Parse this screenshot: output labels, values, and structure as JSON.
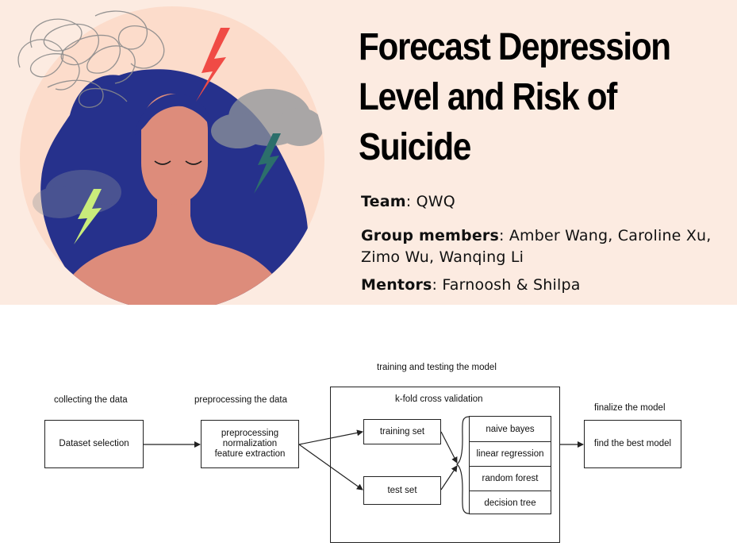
{
  "header": {
    "title_lines": [
      "Forecast Depression",
      "Level and Risk of",
      "Suicide"
    ],
    "team_label": "Team",
    "team_value": ": QWQ",
    "members_label": "Group members",
    "members_value": ": Amber Wang, Caroline Xu, Zimo Wu, Wanqing Li",
    "mentors_label": "Mentors",
    "mentors_value": ": Farnoosh & Shilpa"
  },
  "illustration": {
    "icons": [
      "scribble-thought",
      "lightning-red",
      "lightning-teal",
      "lightning-green",
      "storm-cloud",
      "woman-eyes-closed"
    ],
    "colors": {
      "banner_bg": "#fcebe1",
      "circle": "#fcdccb",
      "hair": "#26318c",
      "skin": "#dd8c7b",
      "bolt_red": "#f04b45",
      "bolt_teal": "#2c6f6b",
      "bolt_green": "#c9ec7b",
      "cloud": "#8e949a"
    }
  },
  "flow": {
    "stages": {
      "collect": "collecting the data",
      "preprocess": "preprocessing the data",
      "train": "training and testing the model",
      "finalize": "finalize the model"
    },
    "kfold": "k-fold cross validation",
    "dataset_box": "Dataset selection",
    "preprocess_box": [
      "preprocessing",
      "normalization",
      "feature extraction"
    ],
    "training_set": "training set",
    "test_set": "test set",
    "models": [
      "naive bayes",
      "linear regression",
      "random forest",
      "decision tree"
    ],
    "final_box": "find the best model"
  }
}
